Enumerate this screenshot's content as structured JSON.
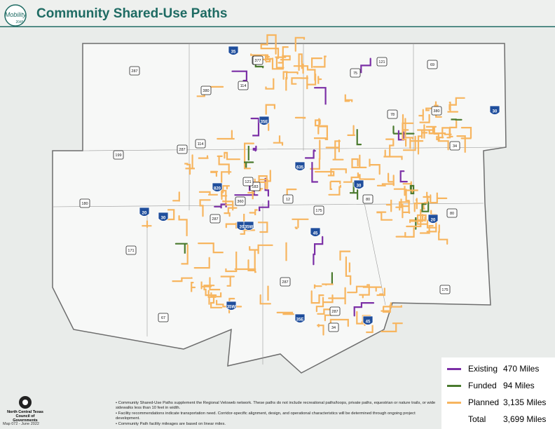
{
  "header": {
    "title": "Community Shared-Use Paths"
  },
  "logo": {
    "word": "Mobility",
    "year": "2045"
  },
  "legend": {
    "items": [
      {
        "label": "Existing",
        "value": "470 Miles",
        "color": "#7b2fa6"
      },
      {
        "label": "Funded",
        "value": "94 Miles",
        "color": "#4a7a2e"
      },
      {
        "label": "Planned",
        "value": "3,135 Miles",
        "color": "#f7b55f"
      },
      {
        "label": "Total",
        "value": "3,699 Miles"
      }
    ]
  },
  "notes": [
    "• Community Shared-Use Paths supplement the Regional Veloweb network. These paths do not include recreational paths/loops, private paths, equestrian or nature trails, or wide sidewalks less than 10 feet in width.",
    "• Facility recommendations indicate transportation need. Corridor-specific alignment, design, and operational characteristics will be determined through ongoing project development.",
    "• Community Path facility mileages are based on linear miles."
  ],
  "org": {
    "name": "North Central Texas Council of Governments",
    "map_id": "Map 072 - June 2022"
  },
  "shields": {
    "interstate": [
      "35",
      "35E",
      "35W",
      "635",
      "820",
      "20",
      "30",
      "45",
      "30",
      "20",
      "20",
      "30",
      "35E",
      "45",
      "35W"
    ],
    "us": [
      "287",
      "377",
      "380",
      "75",
      "121",
      "69",
      "380",
      "78",
      "287",
      "114",
      "199",
      "180",
      "377",
      "171",
      "67",
      "287",
      "34",
      "175",
      "80",
      "80",
      "175",
      "287",
      "360",
      "183",
      "12",
      "121",
      "34",
      "287",
      "114"
    ]
  }
}
